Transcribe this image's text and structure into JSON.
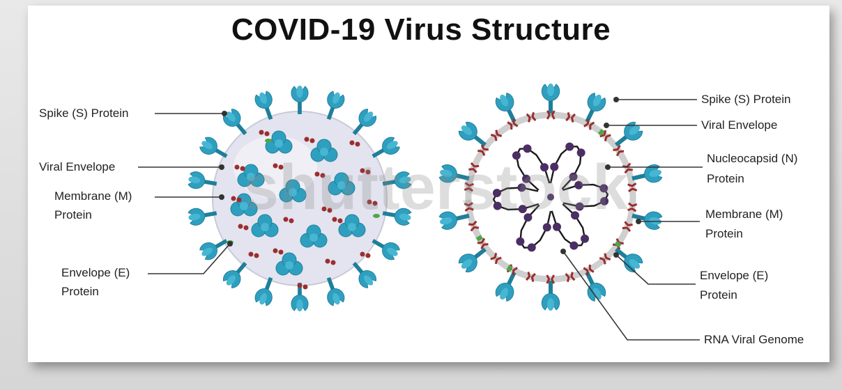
{
  "title": "COVID-19 Virus Structure",
  "watermark": "shutterstock",
  "left_labels": {
    "spike": "Spike (S) Protein",
    "envelope": "Viral Envelope",
    "membrane_1": "Membrane (M)",
    "membrane_2": "Protein",
    "e_protein_1": "Envelope (E)",
    "e_protein_2": "Protein"
  },
  "right_labels": {
    "spike": "Spike (S) Protein",
    "envelope": "Viral Envelope",
    "nucleocapsid_1": "Nucleocapsid (N)",
    "nucleocapsid_2": "Protein",
    "membrane_1": "Membrane (M)",
    "membrane_2": "Protein",
    "e_protein_1": "Envelope (E)",
    "e_protein_2": "Protein",
    "rna": "RNA Viral Genome"
  },
  "colors": {
    "spike": "#2f9fbf",
    "spike_dark": "#1f7f9a",
    "envelope_fill": "#e3e4ef",
    "membrane": "#9b2e2e",
    "e_protein": "#4aa84a",
    "nucleocapsid": "#4b2e63",
    "rna": "#1a1a1a"
  }
}
